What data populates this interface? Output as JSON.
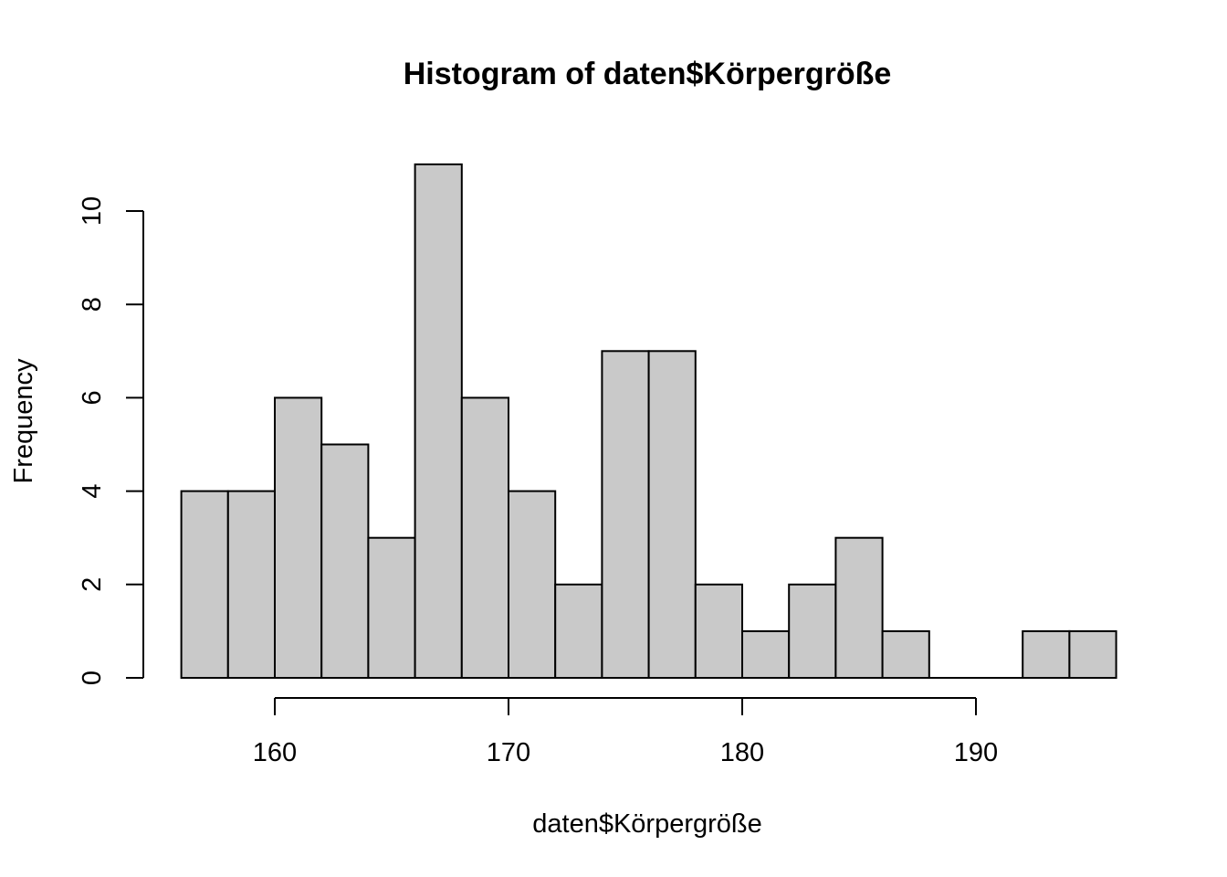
{
  "chart_data": {
    "type": "bar",
    "title": "Histogram of daten$Körpergröße",
    "xlabel": "daten$Körpergröße",
    "ylabel": "Frequency",
    "bin_edges": [
      156,
      158,
      160,
      162,
      164,
      166,
      168,
      170,
      172,
      174,
      176,
      178,
      180,
      182,
      184,
      186,
      188,
      190,
      192,
      194,
      196
    ],
    "values": [
      4,
      4,
      6,
      5,
      3,
      11,
      6,
      4,
      2,
      7,
      7,
      2,
      1,
      2,
      3,
      1,
      0,
      0,
      1,
      1
    ],
    "x_ticks": [
      160,
      170,
      180,
      190
    ],
    "x_tick_labels": [
      "160",
      "170",
      "180",
      "190"
    ],
    "y_ticks": [
      0,
      2,
      4,
      6,
      8,
      10
    ],
    "y_tick_labels": [
      "0",
      "2",
      "4",
      "6",
      "8",
      "10"
    ],
    "bar_color": "#c9c9c9",
    "grid": false
  }
}
